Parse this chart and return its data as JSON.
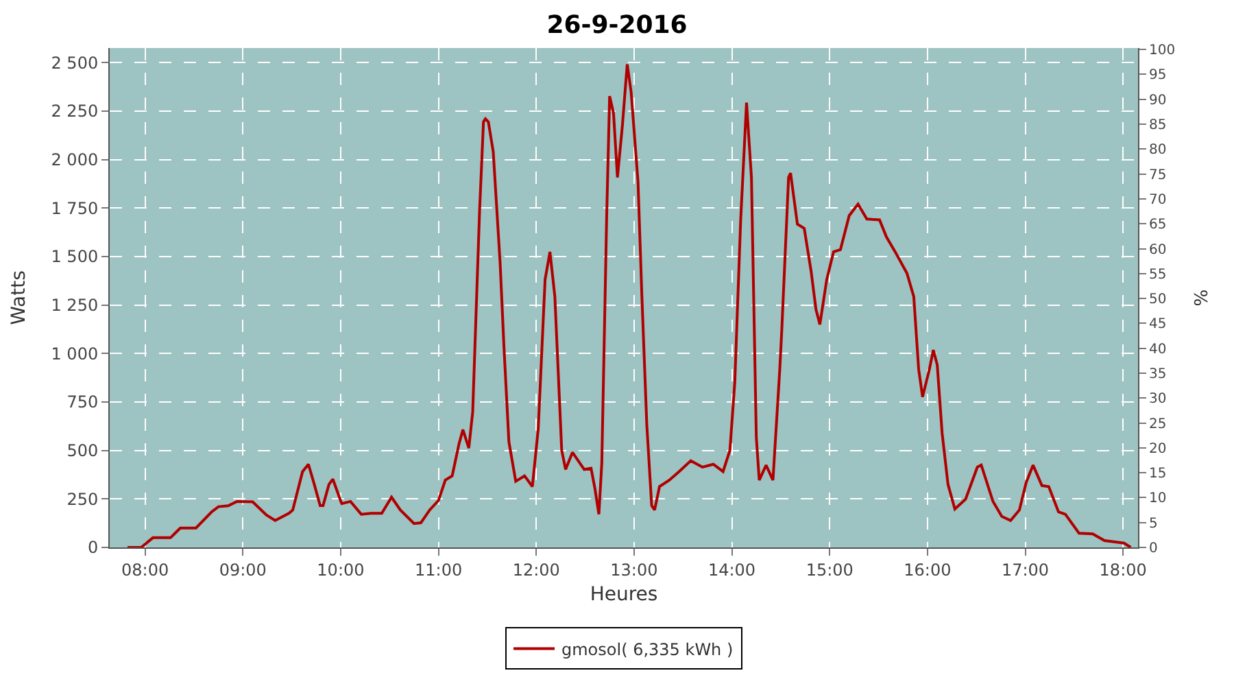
{
  "chart_data": {
    "type": "line",
    "title": "26-9-2016",
    "xlabel": "Heures",
    "ylabel": "Watts",
    "y2label": "%",
    "x": [
      7.82,
      7.96,
      8.08,
      8.26,
      8.36,
      8.52,
      8.68,
      8.75,
      8.85,
      8.94,
      9.1,
      9.24,
      9.33,
      9.47,
      9.51,
      9.61,
      9.67,
      9.73,
      9.79,
      9.82,
      9.88,
      9.92,
      10.01,
      10.1,
      10.21,
      10.31,
      10.42,
      10.52,
      10.61,
      10.75,
      10.82,
      10.91,
      11.0,
      11.07,
      11.14,
      11.21,
      11.25,
      11.31,
      11.35,
      11.42,
      11.46,
      11.48,
      11.51,
      11.56,
      11.63,
      11.67,
      11.72,
      11.79,
      11.88,
      11.96,
      12.02,
      12.09,
      12.14,
      12.19,
      12.26,
      12.3,
      12.37,
      12.49,
      12.56,
      12.6,
      12.64,
      12.67,
      12.72,
      12.75,
      12.79,
      12.83,
      12.88,
      12.93,
      12.97,
      13.04,
      13.08,
      13.13,
      13.18,
      13.21,
      13.26,
      13.36,
      13.46,
      13.58,
      13.7,
      13.81,
      13.91,
      13.98,
      14.03,
      14.09,
      14.15,
      14.2,
      14.25,
      14.28,
      14.35,
      14.42,
      14.49,
      14.51,
      14.58,
      14.6,
      14.67,
      14.74,
      14.81,
      14.86,
      14.9,
      14.97,
      15.04,
      15.11,
      15.2,
      15.29,
      15.38,
      15.51,
      15.58,
      15.67,
      15.79,
      15.86,
      15.91,
      15.95,
      16.02,
      16.06,
      16.1,
      16.15,
      16.21,
      16.28,
      16.39,
      16.51,
      16.55,
      16.67,
      16.76,
      16.85,
      16.94,
      17.01,
      17.08,
      17.17,
      17.24,
      17.34,
      17.41,
      17.55,
      17.69,
      17.81,
      17.92,
      18.01,
      18.08
    ],
    "series": [
      {
        "name": "gmosol( 6,335 kWh )",
        "color": "#b00000",
        "values": [
          0,
          0,
          50,
          50,
          100,
          100,
          183,
          210,
          215,
          237,
          235,
          167,
          139,
          176,
          193,
          391,
          429,
          325,
          216,
          216,
          325,
          352,
          226,
          237,
          171,
          176,
          176,
          259,
          193,
          123,
          127,
          193,
          242,
          347,
          369,
          534,
          607,
          512,
          699,
          1733,
          2194,
          2210,
          2194,
          2040,
          1469,
          1029,
          545,
          341,
          369,
          314,
          611,
          1381,
          1524,
          1293,
          501,
          402,
          490,
          402,
          408,
          303,
          171,
          435,
          1710,
          2327,
          2238,
          1908,
          2172,
          2491,
          2348,
          1887,
          1293,
          633,
          216,
          193,
          314,
          347,
          391,
          447,
          414,
          429,
          391,
          501,
          853,
          1689,
          2293,
          1908,
          567,
          347,
          424,
          347,
          919,
          1117,
          1908,
          1930,
          1667,
          1645,
          1425,
          1227,
          1150,
          1381,
          1524,
          1535,
          1711,
          1770,
          1693,
          1689,
          1601,
          1524,
          1414,
          1293,
          919,
          776,
          919,
          1018,
          941,
          589,
          325,
          198,
          249,
          414,
          425,
          237,
          160,
          139,
          193,
          336,
          424,
          319,
          314,
          183,
          171,
          73,
          70,
          35,
          28,
          22,
          0
        ]
      }
    ],
    "xlim": [
      7.638,
      18.153
    ],
    "xticks": [
      {
        "value": 8,
        "label": "08:00"
      },
      {
        "value": 9,
        "label": "09:00"
      },
      {
        "value": 10,
        "label": "10:00"
      },
      {
        "value": 11,
        "label": "11:00"
      },
      {
        "value": 12,
        "label": "12:00"
      },
      {
        "value": 13,
        "label": "13:00"
      },
      {
        "value": 14,
        "label": "14:00"
      },
      {
        "value": 15,
        "label": "15:00"
      },
      {
        "value": 16,
        "label": "16:00"
      },
      {
        "value": 17,
        "label": "17:00"
      },
      {
        "value": 18,
        "label": "18:00"
      }
    ],
    "ylim": [
      0,
      2575
    ],
    "yticks": [
      {
        "value": 0,
        "label": "0"
      },
      {
        "value": 250,
        "label": "250"
      },
      {
        "value": 500,
        "label": "500"
      },
      {
        "value": 750,
        "label": "750"
      },
      {
        "value": 1000,
        "label": "1 000"
      },
      {
        "value": 1250,
        "label": "1 250"
      },
      {
        "value": 1500,
        "label": "1 500"
      },
      {
        "value": 1750,
        "label": "1 750"
      },
      {
        "value": 2000,
        "label": "2 000"
      },
      {
        "value": 2250,
        "label": "2 250"
      },
      {
        "value": 2500,
        "label": "2 500"
      }
    ],
    "y2lim": [
      0,
      100.3
    ],
    "y2ticks": [
      0,
      5,
      10,
      15,
      20,
      25,
      30,
      35,
      40,
      45,
      50,
      55,
      60,
      65,
      70,
      75,
      80,
      85,
      90,
      95,
      100
    ],
    "grid": true,
    "legend": "bottom",
    "marker": "none",
    "line_style": "solid"
  }
}
